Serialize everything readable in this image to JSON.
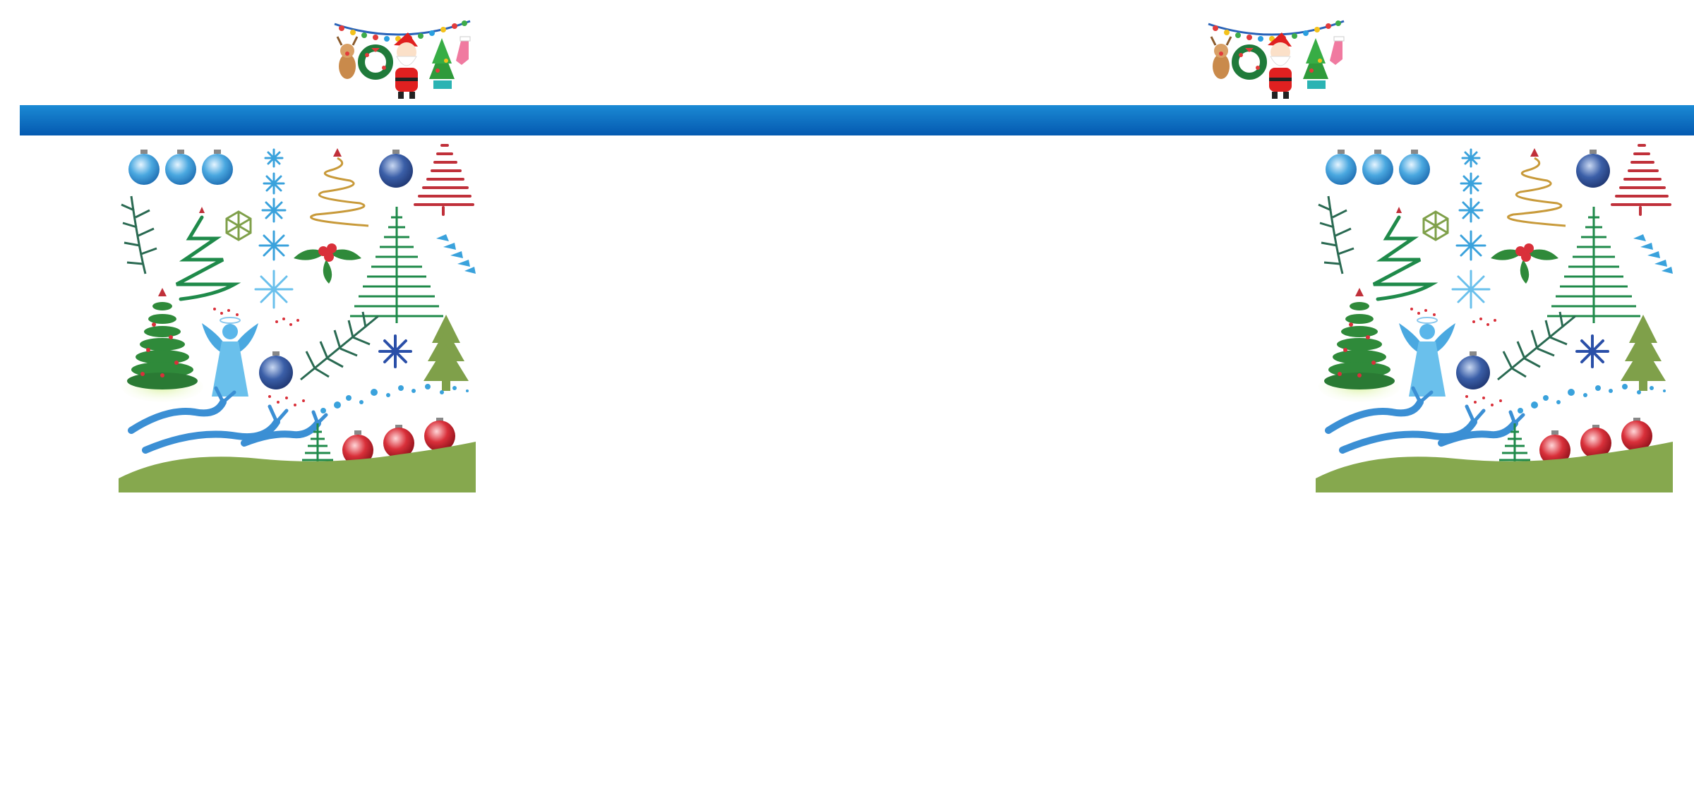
{
  "banner": {
    "bar_color_top": "#1b8ad4",
    "bar_color_bottom": "#0459b0"
  },
  "decorations": {
    "hanging_set": [
      "reindeer-icon",
      "wreath-icon",
      "santa-icon",
      "christmas-tree-icon",
      "stocking-icon",
      "string-lights-icon"
    ],
    "clipart_set": [
      "ornament-icon",
      "snowflake-icon",
      "spiral-tree-icon",
      "holly-icon",
      "angel-icon",
      "pine-branch-icon",
      "reindeer-icon",
      "hill-icon",
      "star-icon"
    ],
    "colors": {
      "ornament_blue": "#4aa8e0",
      "ornament_navy": "#3b5fa8",
      "ornament_red": "#d9303a",
      "tree_green": "#1f8a4a",
      "sage_green": "#7fa04a",
      "hill_green": "#86a84e",
      "snow_blue": "#3aa2dc",
      "reindeer_blue": "#3b8fd4"
    }
  }
}
